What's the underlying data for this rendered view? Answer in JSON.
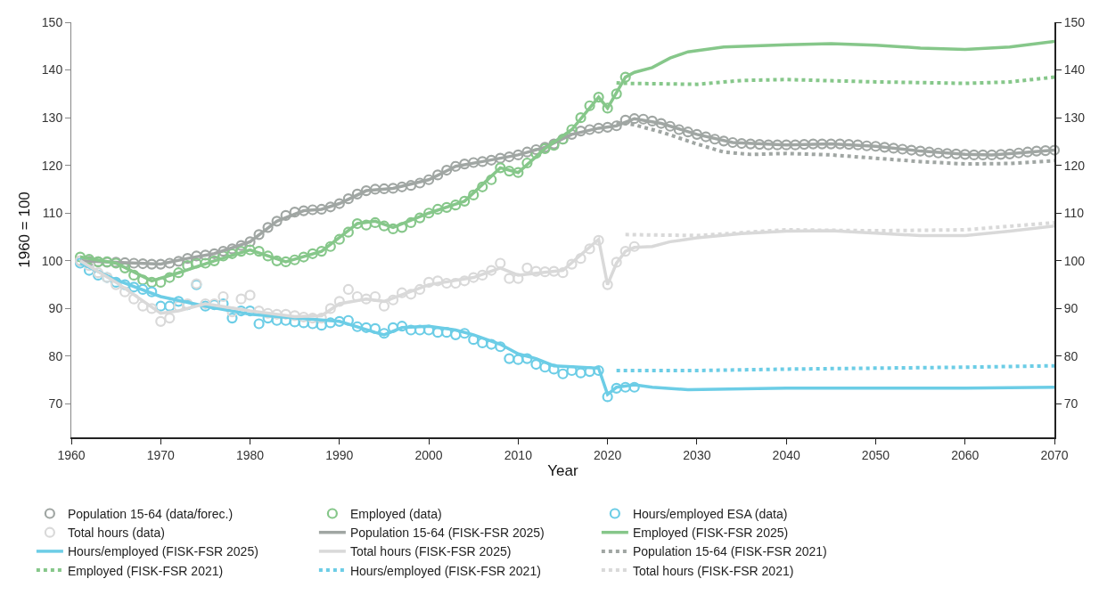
{
  "chart_data": {
    "type": "line",
    "xlabel": "Year",
    "ylabel": "1960 = 100",
    "xlim": [
      1960,
      2070
    ],
    "xticks": [
      1960,
      1970,
      1980,
      1990,
      2000,
      2010,
      2020,
      2030,
      2040,
      2050,
      2060,
      2070
    ],
    "ylim": [
      63,
      150
    ],
    "yticks": [
      70,
      80,
      90,
      100,
      110,
      120,
      130,
      140,
      150
    ],
    "y2lim": [
      63,
      150
    ],
    "y2ticks": [
      70,
      80,
      90,
      100,
      110,
      120,
      130,
      140,
      150
    ],
    "grid": false,
    "legend": "bottom",
    "series": [
      {
        "name": "Population 15-64 (data/forec.)",
        "type": "scatter",
        "marker": "circle",
        "color": "#a0a6a3",
        "x": [
          1961,
          1962,
          1963,
          1964,
          1965,
          1966,
          1967,
          1968,
          1969,
          1970,
          1971,
          1972,
          1973,
          1974,
          1975,
          1976,
          1977,
          1978,
          1979,
          1980,
          1981,
          1982,
          1983,
          1984,
          1985,
          1986,
          1987,
          1988,
          1989,
          1990,
          1991,
          1992,
          1993,
          1994,
          1995,
          1996,
          1997,
          1998,
          1999,
          2000,
          2001,
          2002,
          2003,
          2004,
          2005,
          2006,
          2007,
          2008,
          2009,
          2010,
          2011,
          2012,
          2013,
          2014,
          2015,
          2016,
          2017,
          2018,
          2019,
          2020,
          2021,
          2022,
          2023,
          2024,
          2025,
          2026,
          2027,
          2028,
          2029,
          2030,
          2031,
          2032,
          2033,
          2034,
          2035,
          2036,
          2037,
          2038,
          2039,
          2040,
          2041,
          2042,
          2043,
          2044,
          2045,
          2046,
          2047,
          2048,
          2049,
          2050,
          2051,
          2052,
          2053,
          2054,
          2055,
          2056,
          2057,
          2058,
          2059,
          2060,
          2061,
          2062,
          2063,
          2064,
          2065,
          2066,
          2067,
          2068,
          2069,
          2070
        ],
        "values": [
          100,
          99.9,
          99.8,
          99.7,
          99.7,
          99.6,
          99.5,
          99.4,
          99.3,
          99.3,
          99.5,
          99.9,
          100.5,
          101,
          101.2,
          101.5,
          102,
          102.5,
          103.2,
          104,
          105.5,
          107,
          108.3,
          109.5,
          110.2,
          110.5,
          110.7,
          110.8,
          111.3,
          112,
          113,
          114,
          114.7,
          115,
          115.1,
          115.2,
          115.5,
          115.8,
          116.3,
          117,
          118,
          119,
          119.8,
          120.3,
          120.6,
          120.8,
          121.1,
          121.5,
          121.8,
          122.2,
          122.8,
          123.3,
          123.8,
          124.5,
          125.5,
          126.5,
          127.2,
          127.5,
          127.8,
          128,
          128.3,
          129.5,
          129.8,
          129.7,
          129.3,
          128.8,
          128.2,
          127.5,
          127,
          126.5,
          126,
          125.5,
          125.1,
          124.8,
          124.6,
          124.5,
          124.4,
          124.3,
          124.3,
          124.3,
          124.3,
          124.4,
          124.5,
          124.5,
          124.5,
          124.5,
          124.4,
          124.3,
          124.1,
          124,
          123.8,
          123.6,
          123.4,
          123.2,
          123,
          122.8,
          122.6,
          122.5,
          122.4,
          122.3,
          122.2,
          122.2,
          122.2,
          122.3,
          122.4,
          122.6,
          122.8,
          123,
          123.1,
          123.2
        ]
      },
      {
        "name": "Employed (data)",
        "type": "scatter",
        "marker": "circle",
        "color": "#86c78a",
        "x": [
          1961,
          1962,
          1963,
          1964,
          1965,
          1966,
          1967,
          1968,
          1969,
          1970,
          1971,
          1972,
          1973,
          1974,
          1975,
          1976,
          1977,
          1978,
          1979,
          1980,
          1981,
          1982,
          1983,
          1984,
          1985,
          1986,
          1987,
          1988,
          1989,
          1990,
          1991,
          1992,
          1993,
          1994,
          1995,
          1996,
          1997,
          1998,
          1999,
          2000,
          2001,
          2002,
          2003,
          2004,
          2005,
          2006,
          2007,
          2008,
          2009,
          2010,
          2011,
          2012,
          2013,
          2014,
          2015,
          2016,
          2017,
          2018,
          2019,
          2020,
          2021,
          2022
        ],
        "values": [
          100.8,
          100.3,
          99.8,
          99.8,
          99.5,
          98.5,
          97,
          96,
          95.5,
          95.5,
          96.5,
          97.5,
          99,
          99.5,
          99.5,
          100,
          101,
          101.5,
          102,
          102.3,
          102,
          101,
          100,
          99.8,
          100.2,
          100.8,
          101.5,
          102,
          103,
          104.5,
          106,
          107.8,
          107.5,
          108,
          107.3,
          106.7,
          107,
          108,
          109,
          110,
          110.8,
          111.2,
          111.7,
          112.5,
          113.8,
          115.5,
          117,
          119.5,
          118.8,
          118.5,
          120.5,
          122.5,
          123.5,
          124.2,
          125.5,
          127.5,
          130,
          132.5,
          134.3,
          132,
          135,
          138.5
        ]
      },
      {
        "name": "Hours/employed ESA (data)",
        "type": "scatter",
        "marker": "circle",
        "color": "#6ccde6",
        "x": [
          1961,
          1962,
          1963,
          1964,
          1965,
          1966,
          1967,
          1968,
          1969,
          1970,
          1971,
          1972,
          1973,
          1974,
          1975,
          1976,
          1977,
          1978,
          1979,
          1980,
          1981,
          1982,
          1983,
          1984,
          1985,
          1986,
          1987,
          1988,
          1989,
          1990,
          1991,
          1992,
          1993,
          1994,
          1995,
          1996,
          1997,
          1998,
          1999,
          2000,
          2001,
          2002,
          2003,
          2004,
          2005,
          2006,
          2007,
          2008,
          2009,
          2010,
          2011,
          2012,
          2013,
          2014,
          2015,
          2016,
          2017,
          2018,
          2019,
          2020,
          2021,
          2022,
          2023
        ],
        "values": [
          99.5,
          98,
          97,
          96.5,
          95.5,
          95,
          94.5,
          94,
          93.5,
          90.5,
          90.5,
          91.5,
          90.8,
          95,
          90.5,
          90.8,
          91,
          88,
          89.5,
          89.5,
          86.8,
          88,
          87.5,
          87.5,
          87.2,
          87,
          86.8,
          86.5,
          87,
          87.3,
          87.5,
          86.2,
          86,
          85.8,
          84.8,
          86,
          86.3,
          85.5,
          85.5,
          85.5,
          85,
          85,
          84.5,
          84.8,
          83.5,
          82.8,
          82.5,
          82,
          79.5,
          79.3,
          79.5,
          78.3,
          77.7,
          77.3,
          76.3,
          77,
          76.5,
          76.8,
          77,
          71.5,
          73.3,
          73.5,
          73.5
        ]
      },
      {
        "name": "Total hours (data)",
        "type": "scatter",
        "marker": "circle",
        "color": "#d9d9d9",
        "x": [
          1961,
          1962,
          1963,
          1964,
          1965,
          1966,
          1967,
          1968,
          1969,
          1970,
          1971,
          1972,
          1973,
          1974,
          1975,
          1976,
          1977,
          1978,
          1979,
          1980,
          1981,
          1982,
          1983,
          1984,
          1985,
          1986,
          1987,
          1988,
          1989,
          1990,
          1991,
          1992,
          1993,
          1994,
          1995,
          1996,
          1997,
          1998,
          1999,
          2000,
          2001,
          2002,
          2003,
          2004,
          2005,
          2006,
          2007,
          2008,
          2009,
          2010,
          2011,
          2012,
          2013,
          2014,
          2015,
          2016,
          2017,
          2018,
          2019,
          2020,
          2021,
          2022,
          2023
        ],
        "values": [
          100,
          99,
          97.5,
          96.5,
          95,
          93.5,
          92,
          90.5,
          90,
          87.3,
          88,
          90.5,
          91,
          95.2,
          91,
          91,
          92.5,
          89.3,
          92,
          92.8,
          89.5,
          89,
          88.8,
          88.8,
          88.5,
          88.2,
          88,
          88,
          90,
          91.5,
          94,
          92.5,
          92,
          92.5,
          90.5,
          91.8,
          93.3,
          93,
          94,
          95.5,
          95.8,
          95.3,
          95.3,
          95.8,
          96.5,
          97,
          98,
          99.5,
          96.3,
          96.3,
          98.5,
          97.8,
          97.7,
          97.8,
          97.5,
          99.3,
          100.5,
          102.5,
          104.3,
          95,
          99.7,
          102,
          103
        ]
      },
      {
        "name": "Population 15-64 (FISK-FSR 2025)",
        "line_style": "solid",
        "color": "#a0a6a3",
        "x": [
          1961,
          1965,
          1970,
          1973,
          1976,
          1980,
          1983,
          1986,
          1988,
          1990,
          1993,
          1996,
          2000,
          2003,
          2006,
          2010,
          2013,
          2016,
          2019,
          2021,
          2023,
          2026,
          2030,
          2034,
          2040,
          2045,
          2050,
          2055,
          2060,
          2063,
          2066,
          2070
        ],
        "values": [
          100,
          99.7,
          99.3,
          100.5,
          101.5,
          104,
          108.3,
          110.5,
          110.8,
          112,
          114.7,
          115.2,
          117,
          119.8,
          120.8,
          122.2,
          123.8,
          126.5,
          127.8,
          128.3,
          129.8,
          128.8,
          126.5,
          124.8,
          124.3,
          124.5,
          124,
          123,
          122.3,
          122.2,
          122.6,
          123.2
        ]
      },
      {
        "name": "Employed (FISK-FSR 2025)",
        "line_style": "solid",
        "color": "#86c78a",
        "x": [
          1961,
          1965,
          1969,
          1972,
          1976,
          1980,
          1984,
          1988,
          1992,
          1994,
          1996,
          2000,
          2004,
          2008,
          2010,
          2013,
          2016,
          2019,
          2020,
          2022,
          2023,
          2025,
          2027,
          2029,
          2031,
          2033,
          2040,
          2045,
          2050,
          2055,
          2060,
          2065,
          2070
        ],
        "values": [
          100.8,
          99.5,
          95.8,
          97.5,
          100,
          102.3,
          99.8,
          102,
          107.8,
          108.3,
          107,
          110,
          112.5,
          119.5,
          118.5,
          123.5,
          127.5,
          134.3,
          132,
          138.5,
          139.5,
          140.5,
          142.5,
          143.8,
          144.3,
          144.8,
          145.3,
          145.5,
          145.2,
          144.6,
          144.3,
          144.8,
          146
        ]
      },
      {
        "name": "Hours/employed (FISK-FSR 2025)",
        "line_style": "solid",
        "color": "#6ccde6",
        "x": [
          1961,
          1965,
          1970,
          1975,
          1980,
          1985,
          1990,
          1994,
          1995,
          1997,
          2000,
          2003,
          2005,
          2008,
          2010,
          2012,
          2014,
          2016,
          2019,
          2020,
          2021,
          2023,
          2025,
          2029,
          2040,
          2050,
          2060,
          2070
        ],
        "values": [
          99.5,
          96,
          92.5,
          90.5,
          88.8,
          88,
          87.3,
          85,
          84.5,
          86,
          86.3,
          85.5,
          84.5,
          82.5,
          80.5,
          79.5,
          78,
          77.8,
          77.5,
          72,
          73.5,
          74,
          73.5,
          73,
          73.3,
          73.3,
          73.3,
          73.5
        ]
      },
      {
        "name": "Total hours (FISK-FSR 2025)",
        "line_style": "solid",
        "color": "#d9d9d9",
        "x": [
          1961,
          1965,
          1970,
          1972,
          1975,
          1980,
          1985,
          1988,
          1990,
          1993,
          1995,
          2000,
          2005,
          2008,
          2010,
          2015,
          2019,
          2020,
          2021,
          2022,
          2023,
          2025,
          2027,
          2030,
          2035,
          2040,
          2045,
          2050,
          2055,
          2060,
          2065,
          2070
        ],
        "values": [
          100,
          95.5,
          89,
          89.5,
          91,
          89.5,
          88.3,
          88.5,
          91,
          92,
          91.5,
          95,
          96.5,
          98.5,
          97,
          98,
          104.5,
          95,
          99.5,
          102,
          102.8,
          103,
          104,
          104.8,
          105.7,
          106.2,
          106.3,
          105.8,
          105.3,
          105.3,
          106.2,
          107.3
        ]
      },
      {
        "name": "Population 15-64 (FISK-FSR 2021)",
        "line_style": "dotted",
        "color": "#a0a6a3",
        "x": [
          2021,
          2023,
          2026,
          2030,
          2033,
          2036,
          2040,
          2045,
          2050,
          2055,
          2060,
          2065,
          2070
        ],
        "values": [
          129,
          128.5,
          127,
          124.5,
          122.8,
          122.3,
          122.5,
          122.2,
          121.5,
          120.8,
          120.3,
          120.4,
          121
        ]
      },
      {
        "name": "Employed (FISK-FSR 2021)",
        "line_style": "dotted",
        "color": "#86c78a",
        "x": [
          2021,
          2022,
          2030,
          2035,
          2040,
          2050,
          2060,
          2065,
          2070
        ],
        "values": [
          137.3,
          137.2,
          137,
          137.8,
          138,
          137.5,
          137.2,
          137.5,
          138.5
        ]
      },
      {
        "name": "Hours/employed (FISK-FSR 2021)",
        "line_style": "dotted",
        "color": "#6ccde6",
        "x": [
          2021,
          2030,
          2040,
          2050,
          2060,
          2070
        ],
        "values": [
          77,
          77,
          77.3,
          77.5,
          77.7,
          78
        ]
      },
      {
        "name": "Total hours (FISK-FSR 2021)",
        "line_style": "dotted",
        "color": "#d9d9d9",
        "x": [
          2022,
          2030,
          2040,
          2050,
          2060,
          2070
        ],
        "values": [
          105.5,
          105.3,
          106.5,
          106.3,
          106.5,
          108
        ]
      }
    ]
  }
}
